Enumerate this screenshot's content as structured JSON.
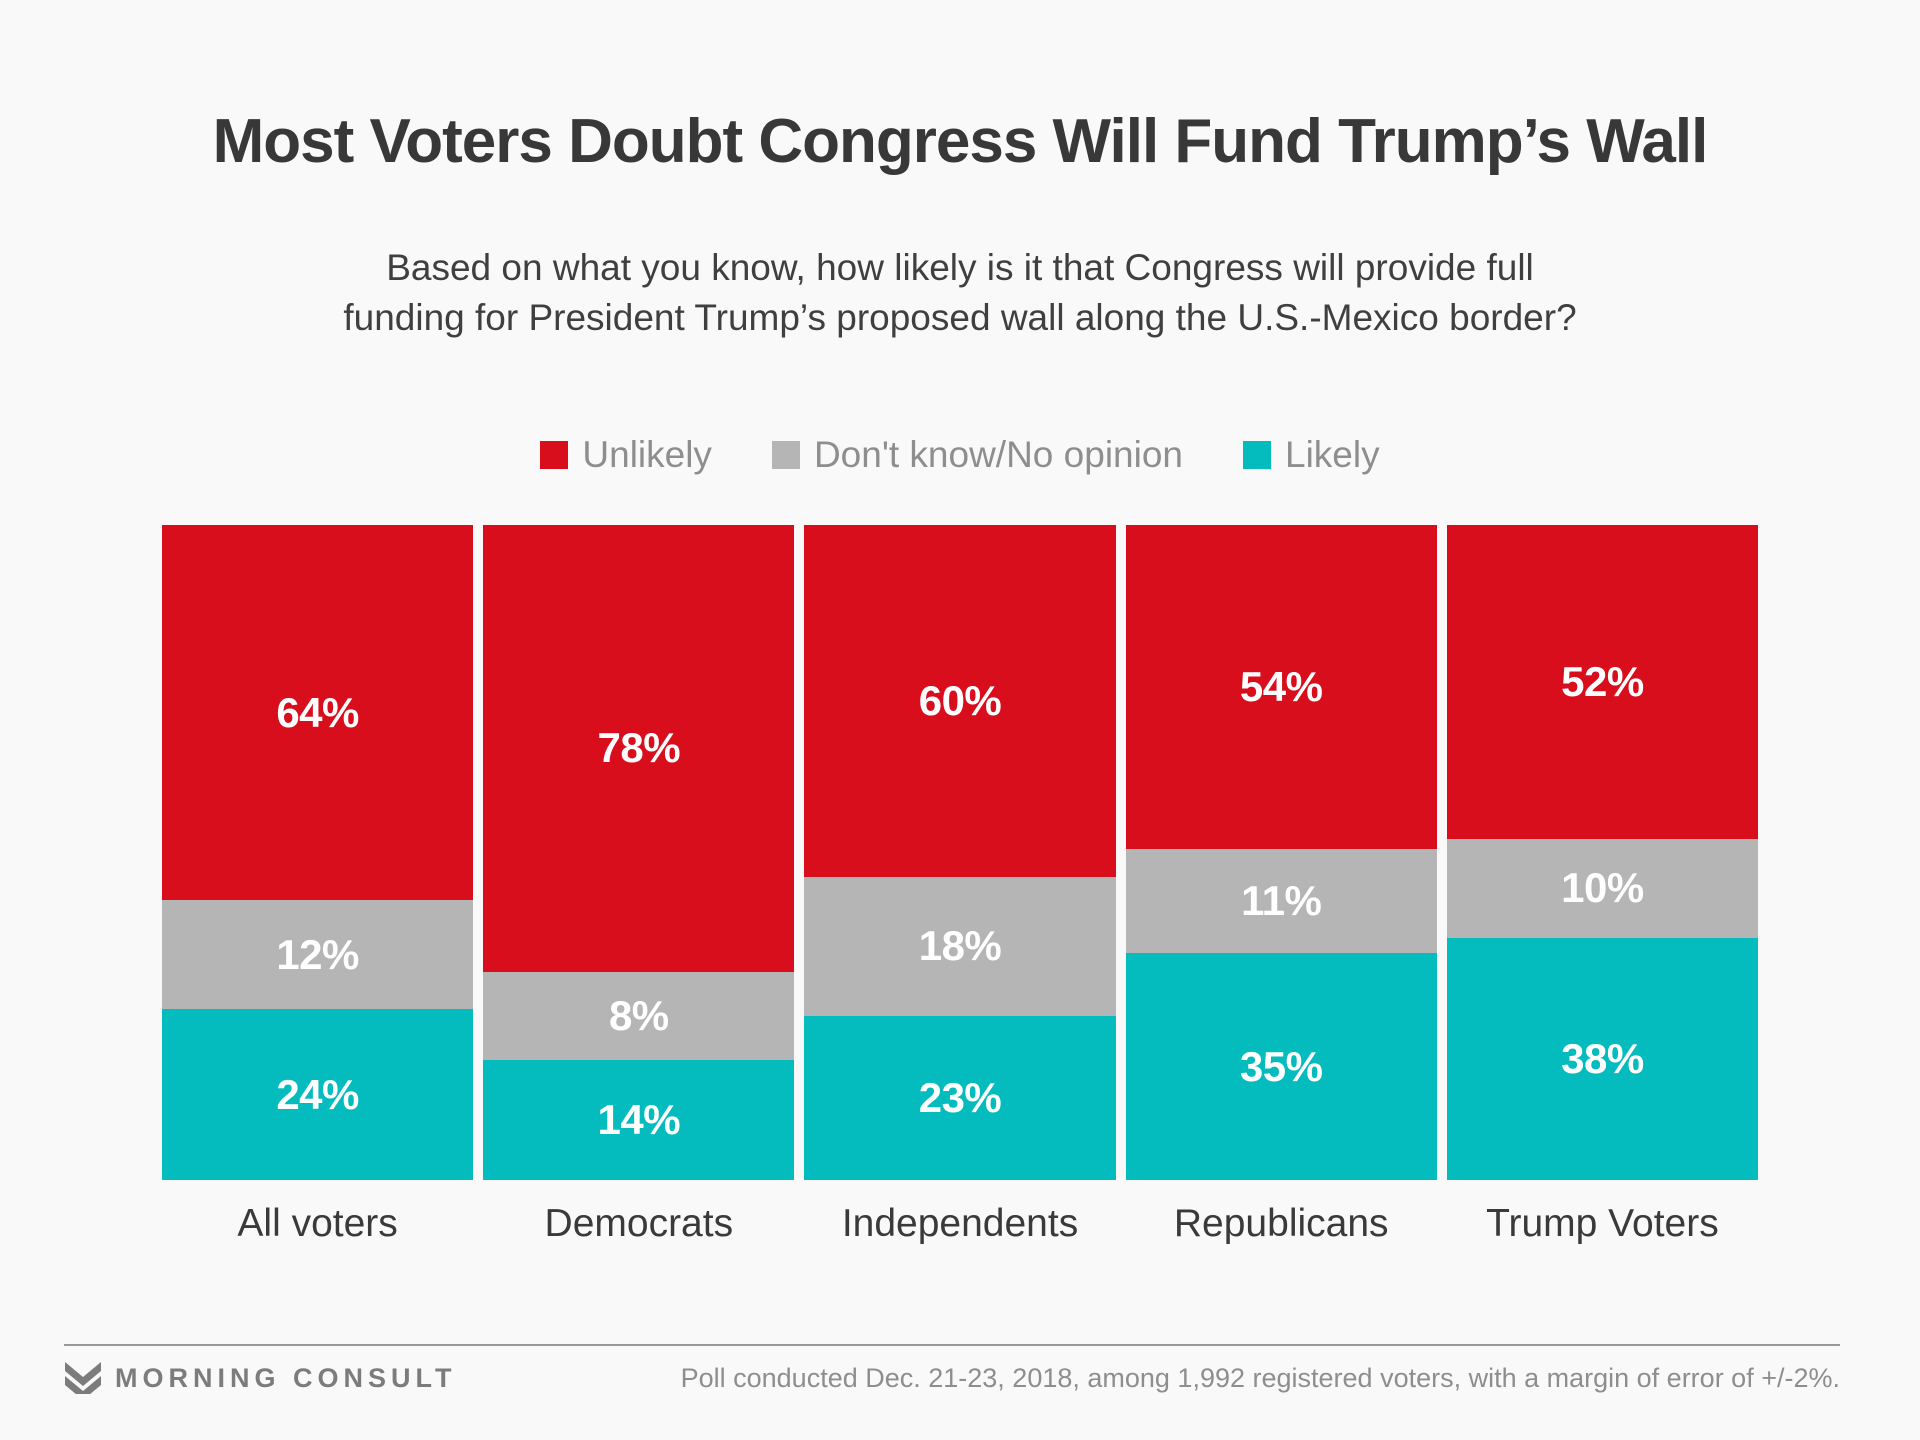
{
  "header": {
    "title": "Most Voters Doubt Congress Will Fund Trump’s Wall",
    "subtitle": "Based on what you know, how likely is it that Congress will provide full\nfunding for President Trump’s proposed wall along the U.S.-Mexico border?"
  },
  "chart_data": {
    "type": "bar",
    "stacked": true,
    "orientation": "vertical",
    "categories": [
      "All voters",
      "Democrats",
      "Independents",
      "Republicans",
      "Trump Voters"
    ],
    "series": [
      {
        "name": "Unlikely",
        "color": "#d90e1c",
        "values": [
          64,
          78,
          60,
          54,
          52
        ]
      },
      {
        "name": "Don't know/No opinion",
        "color": "#b5b5b5",
        "values": [
          12,
          8,
          18,
          11,
          10
        ]
      },
      {
        "name": "Likely",
        "color": "#04bcbd",
        "values": [
          24,
          14,
          23,
          35,
          38
        ]
      }
    ],
    "value_suffix": "%",
    "value_labels": true,
    "ylim": [
      0,
      100
    ],
    "grid": false,
    "legend_position": "top center",
    "segment_order_top_to_bottom": [
      "Unlikely",
      "Don't know/No opinion",
      "Likely"
    ]
  },
  "footer": {
    "brand": "MORNING CONSULT",
    "note": "Poll conducted Dec. 21-23, 2018, among 1,992 registered voters, with a margin of error of +/-2%."
  },
  "colors": {
    "background": "#f9f9f9",
    "title_text": "#383838",
    "subtitle_text": "#3f3f3f",
    "legend_text": "#8e8e8e",
    "category_text": "#3a3a3a",
    "value_label_text": "#ffffff",
    "unlikely": "#d90e1c",
    "dont_know": "#b5b5b5",
    "likely": "#04bcbd",
    "divider": "#989898",
    "logo": "#7c7c7c",
    "note_text": "#8e8e8e"
  }
}
